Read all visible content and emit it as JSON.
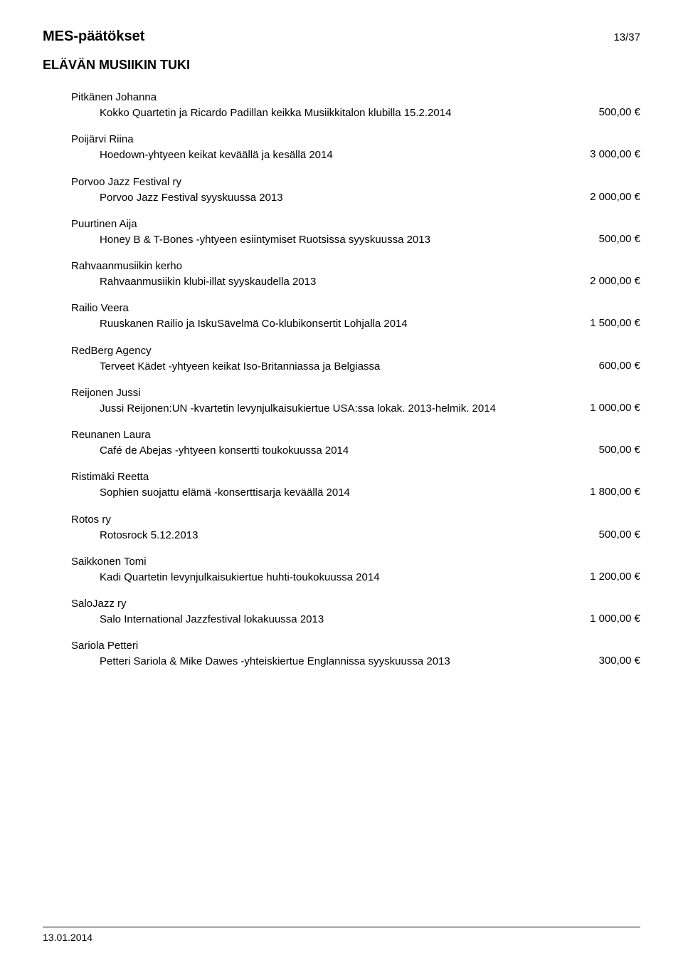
{
  "header": {
    "title": "MES-päätökset",
    "page_number": "13/37"
  },
  "section_title": "ELÄVÄN MUSIIKIN TUKI",
  "footer": {
    "date": "13.01.2014"
  },
  "entries": [
    {
      "applicant": "Pitkänen Johanna",
      "description": "Kokko Quartetin ja Ricardo Padillan keikka Musiikkitalon klubilla 15.2.2014",
      "amount": "500,00 €"
    },
    {
      "applicant": "Poijärvi Riina",
      "description": "Hoedown-yhtyeen keikat keväällä ja kesällä 2014",
      "amount": "3 000,00 €"
    },
    {
      "applicant": "Porvoo Jazz Festival ry",
      "description": "Porvoo Jazz Festival syyskuussa 2013",
      "amount": "2 000,00 €"
    },
    {
      "applicant": "Puurtinen Aija",
      "description": "Honey B & T-Bones -yhtyeen esiintymiset Ruotsissa syyskuussa 2013",
      "amount": "500,00 €"
    },
    {
      "applicant": "Rahvaanmusiikin kerho",
      "description": "Rahvaanmusiikin klubi-illat syyskaudella 2013",
      "amount": "2 000,00 €"
    },
    {
      "applicant": "Railio Veera",
      "description": "Ruuskanen Railio ja IskuSävelmä Co-klubikonsertit Lohjalla 2014",
      "amount": "1 500,00 €"
    },
    {
      "applicant": "RedBerg Agency",
      "description": "Terveet Kädet -yhtyeen keikat Iso-Britanniassa ja Belgiassa",
      "amount": "600,00 €"
    },
    {
      "applicant": "Reijonen Jussi",
      "description": "Jussi Reijonen:UN -kvartetin levynjulkaisukiertue USA:ssa lokak. 2013-helmik. 2014",
      "amount": "1 000,00 €"
    },
    {
      "applicant": "Reunanen Laura",
      "description": "Café de Abejas -yhtyeen konsertti toukokuussa 2014",
      "amount": "500,00 €"
    },
    {
      "applicant": "Ristimäki Reetta",
      "description": "Sophien suojattu elämä -konserttisarja keväällä 2014",
      "amount": "1 800,00 €"
    },
    {
      "applicant": "Rotos ry",
      "description": "Rotosrock 5.12.2013",
      "amount": "500,00 €"
    },
    {
      "applicant": "Saikkonen Tomi",
      "description": "Kadi Quartetin levynjulkaisukiertue huhti-toukokuussa 2014",
      "amount": "1 200,00 €"
    },
    {
      "applicant": "SaloJazz ry",
      "description": "Salo International Jazzfestival lokakuussa 2013",
      "amount": "1 000,00 €"
    },
    {
      "applicant": "Sariola Petteri",
      "description": "Petteri Sariola & Mike Dawes -yhteiskiertue Englannissa syyskuussa 2013",
      "amount": "300,00 €"
    }
  ]
}
